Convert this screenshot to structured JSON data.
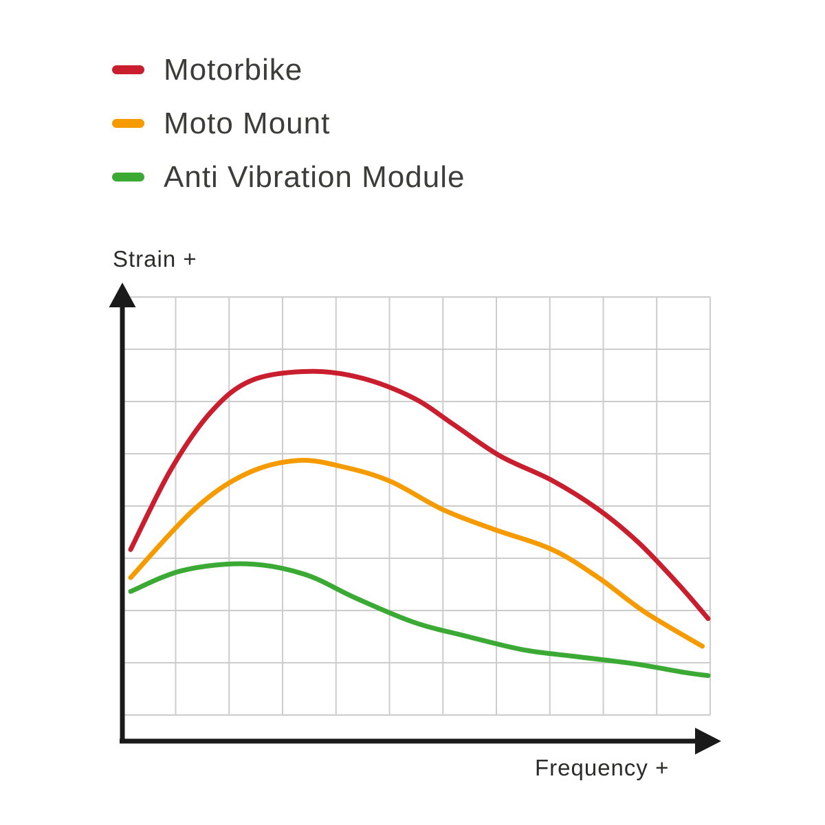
{
  "page": {
    "background": "#ffffff"
  },
  "legend": {
    "items": [
      {
        "label": "Motorbike",
        "color": "#c81e2d"
      },
      {
        "label": "Moto Mount",
        "color": "#f59b00"
      },
      {
        "label": "Anti Vibration Module",
        "color": "#3aaa35"
      }
    ]
  },
  "chart_data": {
    "type": "line",
    "title": "",
    "xlabel": "Frequency +",
    "ylabel": "Strain +",
    "xlim": [
      0,
      100
    ],
    "ylim": [
      0,
      100
    ],
    "grid": true,
    "legend_position": "top-left",
    "axis_color": "#1a1a1a",
    "grid_color": "#cccccc",
    "series": [
      {
        "name": "Motorbike",
        "color": "#c81e2d",
        "points": [
          [
            0,
            43
          ],
          [
            7,
            61
          ],
          [
            14,
            74
          ],
          [
            21,
            81
          ],
          [
            31,
            83
          ],
          [
            40,
            81.5
          ],
          [
            49,
            77
          ],
          [
            56,
            71
          ],
          [
            64,
            64
          ],
          [
            73,
            58.5
          ],
          [
            81,
            52
          ],
          [
            88,
            44.5
          ],
          [
            95,
            35
          ],
          [
            100,
            27.5
          ]
        ]
      },
      {
        "name": "Moto Mount",
        "color": "#f59b00",
        "points": [
          [
            0,
            36.7
          ],
          [
            11,
            52
          ],
          [
            20,
            60
          ],
          [
            29,
            63
          ],
          [
            37,
            61.5
          ],
          [
            45,
            58.3
          ],
          [
            54,
            52
          ],
          [
            63,
            47.5
          ],
          [
            73,
            43
          ],
          [
            81,
            36.7
          ],
          [
            89,
            29
          ],
          [
            99,
            21.3
          ]
        ]
      },
      {
        "name": "Anti Vibration Module",
        "color": "#3aaa35",
        "points": [
          [
            0,
            33.6
          ],
          [
            9,
            38.3
          ],
          [
            20,
            39.8
          ],
          [
            30,
            37.5
          ],
          [
            39,
            32.1
          ],
          [
            49,
            26.7
          ],
          [
            58,
            23.6
          ],
          [
            68,
            20.5
          ],
          [
            77,
            19
          ],
          [
            87,
            17.4
          ],
          [
            96,
            15.4
          ],
          [
            100,
            14.7
          ]
        ]
      }
    ]
  }
}
